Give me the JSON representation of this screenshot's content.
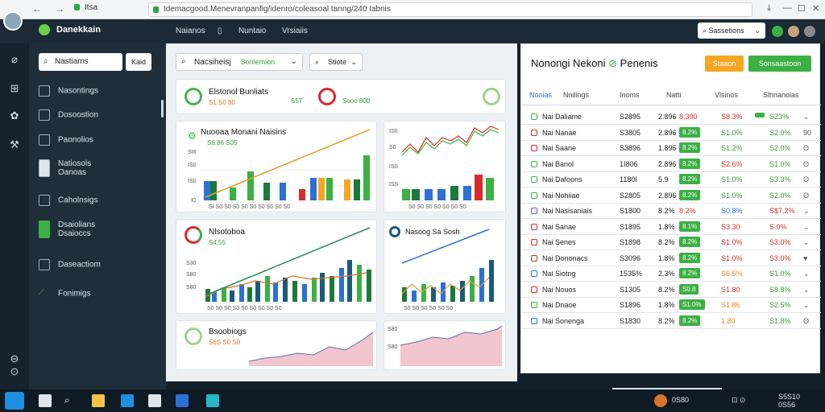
{
  "browser": {
    "tab_label": "Itsa",
    "url": "Idemacgood.Menevranpanfig/idenro/coleasoal tanng/240 Iabnis",
    "back": "←",
    "forward": "→"
  },
  "app": {
    "brand": "Danekkain",
    "nav": [
      "Naianos",
      "Nuntaio",
      "Vrsiaiis"
    ],
    "nav_icon": "▯",
    "select_label": "Sassetions"
  },
  "sidebar": {
    "search_label": "Nastiams",
    "search_button": "Kaid",
    "items": [
      {
        "label": "Nasontings",
        "icon": "grid-icon"
      },
      {
        "label": "Dosoostion",
        "icon": "grid-icon"
      },
      {
        "label": "Paonolios",
        "icon": "grid-icon"
      },
      {
        "label": "Natiosols\nOanoas",
        "icon": "doc-icon"
      },
      {
        "label": "Caholnsigs",
        "icon": "grid-icon"
      },
      {
        "label": "Dsaiolians\nDsaioccs",
        "icon": "phone-icon"
      },
      {
        "label": "Daseactiom",
        "icon": "grid-icon"
      },
      {
        "label": "Fonimigs",
        "icon": "trend-icon"
      }
    ]
  },
  "main": {
    "search_label": "Nacsiheisj",
    "search_sub": "Sonlemion",
    "filter_label": "Stiote",
    "summary_title": "Elstonol Bunliats",
    "summary_value": "S1.S0 80",
    "summary_mid": "S5T",
    "summary_right": "Sooo 800",
    "card1_title": "Nuooaa Monani Naisins",
    "card1_value": "S6.86 S05",
    "card3_title": "Nlsotoboa",
    "card3_value": "S4.55",
    "card4_title": "Nasoog Sa Sosh",
    "card5_title": "Bsoobiogs",
    "card5_value": "S6S S0 S0"
  },
  "table": {
    "title": "Nonongi Nekoni",
    "title_suffix": "Penenis",
    "btn_orange": "Staaon",
    "btn_green": "Sonsaastoon",
    "headers": [
      "Nonias",
      "Nnilings",
      "Inoms",
      "Natti",
      "Vlsinos",
      "Slhnanolas"
    ],
    "rows": [
      {
        "code": "Nai",
        "name": "Daliame",
        "price": "S2895",
        "vol": "2.896",
        "chg": "8.300",
        "pct": "S8.3%",
        "last": "S23%",
        "chg_col": "neg",
        "pct_col": "neg",
        "last_col": "pos",
        "end": "⌄"
      },
      {
        "code": "Nai",
        "name": "Nanae",
        "price": "S3805",
        "vol": "2.896",
        "chg": "8.2%",
        "pct": "S1.0%",
        "last": "S2.0%",
        "chg_col": "pill",
        "pct_col": "pos",
        "last_col": "pos",
        "end": "90"
      },
      {
        "code": "Nai",
        "name": "Saane",
        "price": "S3896",
        "vol": "1.896",
        "chg": "8.2%",
        "pct": "S1.2%",
        "last": "S2.0%",
        "chg_col": "pill",
        "pct_col": "pos",
        "last_col": "pos",
        "end": "ʘ"
      },
      {
        "code": "Nai",
        "name": "Banol",
        "price": "1I806",
        "vol": "2.896",
        "chg": "8.2%",
        "pct": "S2.6%",
        "last": "S1.0%",
        "chg_col": "pill",
        "pct_col": "neg",
        "last_col": "pos",
        "end": "ʘ"
      },
      {
        "code": "Nai",
        "name": "Dafoons",
        "price": "1180I",
        "vol": "5.9",
        "chg": "8.2%",
        "pct": "S1.0%",
        "last": "S3.3%",
        "chg_col": "pill",
        "pct_col": "pos",
        "last_col": "pos",
        "end": "ʘ"
      },
      {
        "code": "Nai",
        "name": "Nohiiae",
        "price": "S2805",
        "vol": "2.896",
        "chg": "8.2%",
        "pct": "S1.0%",
        "last": "S2.0%",
        "chg_col": "pill",
        "pct_col": "pos",
        "last_col": "pos",
        "end": "ʘ"
      },
      {
        "code": "Nai",
        "name": "Nasisaniais",
        "price": "S1800",
        "vol": "8.2%",
        "chg": "8.2%",
        "pct": "S0.8%",
        "last": "S$7.2%",
        "chg_col": "neg",
        "pct_col": "blu",
        "last_col": "neg",
        "end": "⌄"
      },
      {
        "code": "Nai",
        "name": "Sanae",
        "price": "S1895",
        "vol": "1.8%",
        "chg": "8.1%",
        "pct": "S3.30",
        "last": "S.0%",
        "chg_col": "pill",
        "pct_col": "neg",
        "last_col": "neg",
        "end": "⌄"
      },
      {
        "code": "Nai",
        "name": "Senes",
        "price": "S1898",
        "vol": "8.2%",
        "chg": "8.2%",
        "pct": "S1.0%",
        "last": "S3.0%",
        "chg_col": "pill",
        "pct_col": "neg",
        "last_col": "neg",
        "end": "⌄"
      },
      {
        "code": "Nai",
        "name": "Dononacs",
        "price": "S3096",
        "vol": "1.8%",
        "chg": "8.2%",
        "pct": "S1.0%",
        "last": "S3.0%",
        "chg_col": "pill",
        "pct_col": "neg",
        "last_col": "neg",
        "end": "♥"
      },
      {
        "code": "Nai",
        "name": "Siotng",
        "price": "1535%",
        "vol": "2.3%",
        "chg": "8.2%",
        "pct": "S6.5%",
        "last": "S1.0%",
        "chg_col": "pill",
        "pct_col": "orn",
        "last_col": "pos",
        "end": "⌄"
      },
      {
        "code": "Nai",
        "name": "Nouos",
        "price": "S1305",
        "vol": "8.2%",
        "chg": "S0.8",
        "pct": "S1.80",
        "last": "S8.8%",
        "chg_col": "pill",
        "pct_col": "neg",
        "last_col": "pos",
        "end": "⌄"
      },
      {
        "code": "Nai",
        "name": "Dnaoe",
        "price": "S1896",
        "vol": "1.8%",
        "chg": "S1.0%",
        "pct": "S1.86",
        "last": "S2.5%",
        "chg_col": "pill",
        "pct_col": "orn",
        "last_col": "pos",
        "end": "⌄"
      },
      {
        "code": "Nai",
        "name": "Sonenga",
        "price": "S1830",
        "vol": "8.2%",
        "chg": "8.2%",
        "pct": "1.80",
        "last": "S1.8%",
        "chg_col": "pill",
        "pct_col": "orn",
        "last_col": "pos",
        "end": "ʘ"
      }
    ]
  },
  "taskbar": {
    "tray_text": "0S80",
    "tray_time": "S5S10\n0S56",
    "tray_icons": "⊡ ⊙"
  }
}
